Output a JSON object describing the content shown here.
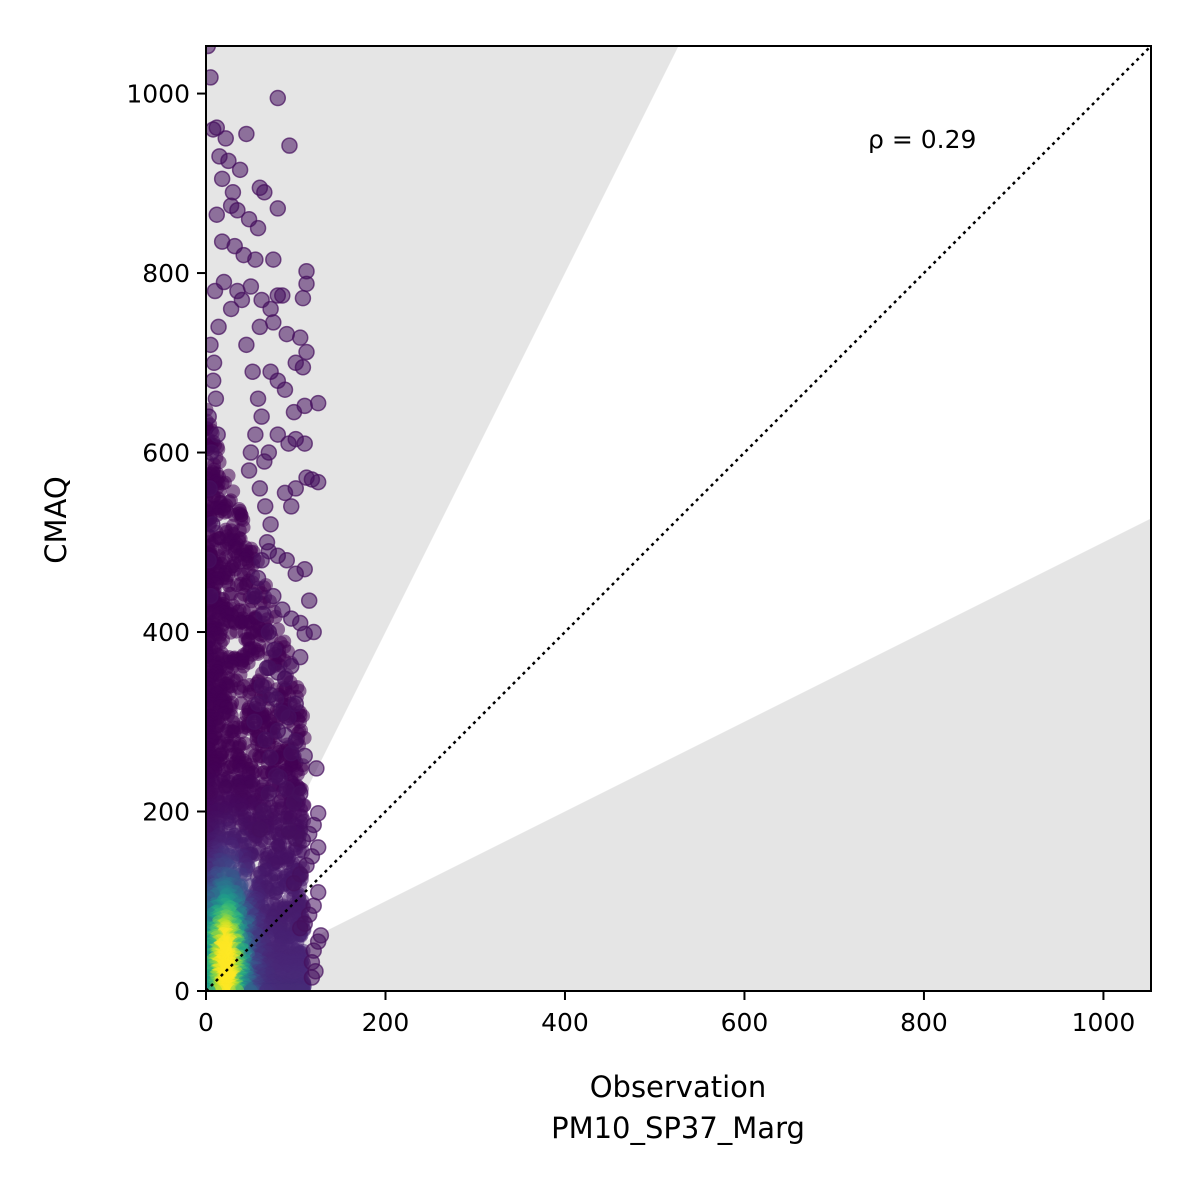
{
  "chart_data": {
    "type": "scatter",
    "title": "",
    "xlabel": "Observation",
    "xlabel_sub": "PM10_SP37_Marg",
    "ylabel": "CMAQ",
    "xlim": [
      0,
      1053
    ],
    "ylim": [
      0,
      1053
    ],
    "x_ticks": [
      0,
      200,
      400,
      600,
      800,
      1000
    ],
    "y_ticks": [
      0,
      200,
      400,
      600,
      800,
      1000
    ],
    "annotation": "ρ = 0.29",
    "reference_line": {
      "type": "1:1",
      "style": "dotted",
      "color": "#000000"
    },
    "shaded_regions": [
      {
        "name": "above factor-2 band",
        "slope_low": 2.0,
        "color": "#e5e5e5"
      },
      {
        "name": "below factor-2 band",
        "slope_high": 0.5,
        "color": "#e5e5e5"
      }
    ],
    "colormap": "viridis",
    "grid": false,
    "legend": "none",
    "outlier_points": [
      [
        2,
        1053
      ],
      [
        5,
        1018
      ],
      [
        8,
        960
      ],
      [
        12,
        962
      ],
      [
        22,
        950
      ],
      [
        45,
        955
      ],
      [
        80,
        995
      ],
      [
        93,
        942
      ],
      [
        15,
        930
      ],
      [
        25,
        925
      ],
      [
        38,
        915
      ],
      [
        18,
        905
      ],
      [
        30,
        890
      ],
      [
        60,
        895
      ],
      [
        65,
        890
      ],
      [
        12,
        865
      ],
      [
        28,
        875
      ],
      [
        35,
        870
      ],
      [
        48,
        860
      ],
      [
        58,
        850
      ],
      [
        80,
        872
      ],
      [
        18,
        835
      ],
      [
        32,
        830
      ],
      [
        42,
        820
      ],
      [
        55,
        815
      ],
      [
        75,
        815
      ],
      [
        112,
        802
      ],
      [
        112,
        788
      ],
      [
        108,
        772
      ],
      [
        85,
        775
      ],
      [
        80,
        775
      ],
      [
        62,
        770
      ],
      [
        72,
        760
      ],
      [
        20,
        790
      ],
      [
        35,
        780
      ],
      [
        50,
        785
      ],
      [
        40,
        770
      ],
      [
        28,
        760
      ],
      [
        75,
        745
      ],
      [
        90,
        732
      ],
      [
        105,
        728
      ],
      [
        112,
        712
      ],
      [
        100,
        700
      ],
      [
        108,
        695
      ],
      [
        60,
        740
      ],
      [
        125,
        655
      ],
      [
        110,
        652
      ],
      [
        98,
        645
      ],
      [
        88,
        670
      ],
      [
        72,
        690
      ],
      [
        80,
        680
      ],
      [
        100,
        615
      ],
      [
        110,
        610
      ],
      [
        92,
        610
      ],
      [
        80,
        620
      ],
      [
        70,
        600
      ],
      [
        65,
        590
      ],
      [
        118,
        570
      ],
      [
        125,
        567
      ],
      [
        112,
        572
      ],
      [
        100,
        560
      ],
      [
        95,
        540
      ],
      [
        88,
        555
      ],
      [
        110,
        470
      ],
      [
        100,
        465
      ],
      [
        90,
        480
      ],
      [
        80,
        485
      ],
      [
        70,
        490
      ],
      [
        115,
        435
      ],
      [
        120,
        400
      ],
      [
        110,
        398
      ],
      [
        105,
        410
      ],
      [
        95,
        415
      ],
      [
        85,
        425
      ],
      [
        75,
        440
      ],
      [
        105,
        372
      ],
      [
        95,
        362
      ],
      [
        88,
        348
      ],
      [
        80,
        355
      ],
      [
        70,
        360
      ],
      [
        100,
        320
      ],
      [
        92,
        305
      ],
      [
        85,
        310
      ],
      [
        78,
        325
      ],
      [
        72,
        330
      ],
      [
        110,
        262
      ],
      [
        123,
        248
      ],
      [
        100,
        278
      ],
      [
        95,
        265
      ],
      [
        88,
        285
      ],
      [
        80,
        290
      ],
      [
        105,
        220
      ],
      [
        98,
        210
      ],
      [
        90,
        225
      ],
      [
        82,
        238
      ],
      [
        125,
        198
      ],
      [
        120,
        185
      ],
      [
        115,
        175
      ],
      [
        108,
        168
      ],
      [
        100,
        170
      ],
      [
        92,
        180
      ],
      [
        125,
        160
      ],
      [
        118,
        150
      ],
      [
        112,
        140
      ],
      [
        105,
        130
      ],
      [
        98,
        120
      ],
      [
        125,
        110
      ],
      [
        120,
        95
      ],
      [
        115,
        85
      ],
      [
        110,
        75
      ],
      [
        105,
        70
      ],
      [
        128,
        62
      ],
      [
        125,
        55
      ],
      [
        120,
        45
      ],
      [
        118,
        32
      ],
      [
        122,
        22
      ],
      [
        118,
        15
      ],
      [
        5,
        720
      ],
      [
        8,
        680
      ],
      [
        3,
        640
      ],
      [
        6,
        600
      ],
      [
        4,
        560
      ],
      [
        7,
        520
      ],
      [
        3,
        480
      ],
      [
        5,
        440
      ],
      [
        10,
        780
      ],
      [
        14,
        740
      ],
      [
        9,
        700
      ],
      [
        11,
        660
      ],
      [
        13,
        620
      ],
      [
        45,
        720
      ],
      [
        52,
        690
      ],
      [
        58,
        660
      ],
      [
        62,
        640
      ],
      [
        55,
        620
      ],
      [
        50,
        600
      ],
      [
        48,
        580
      ],
      [
        60,
        560
      ],
      [
        66,
        540
      ],
      [
        72,
        520
      ],
      [
        68,
        500
      ],
      [
        62,
        480
      ],
      [
        58,
        460
      ],
      [
        54,
        440
      ],
      [
        64,
        420
      ],
      [
        70,
        400
      ],
      [
        76,
        380
      ],
      [
        68,
        360
      ],
      [
        62,
        340
      ],
      [
        58,
        320
      ],
      [
        54,
        300
      ],
      [
        66,
        280
      ],
      [
        72,
        260
      ],
      [
        78,
        240
      ],
      [
        70,
        220
      ],
      [
        64,
        200
      ],
      [
        60,
        180
      ]
    ]
  }
}
